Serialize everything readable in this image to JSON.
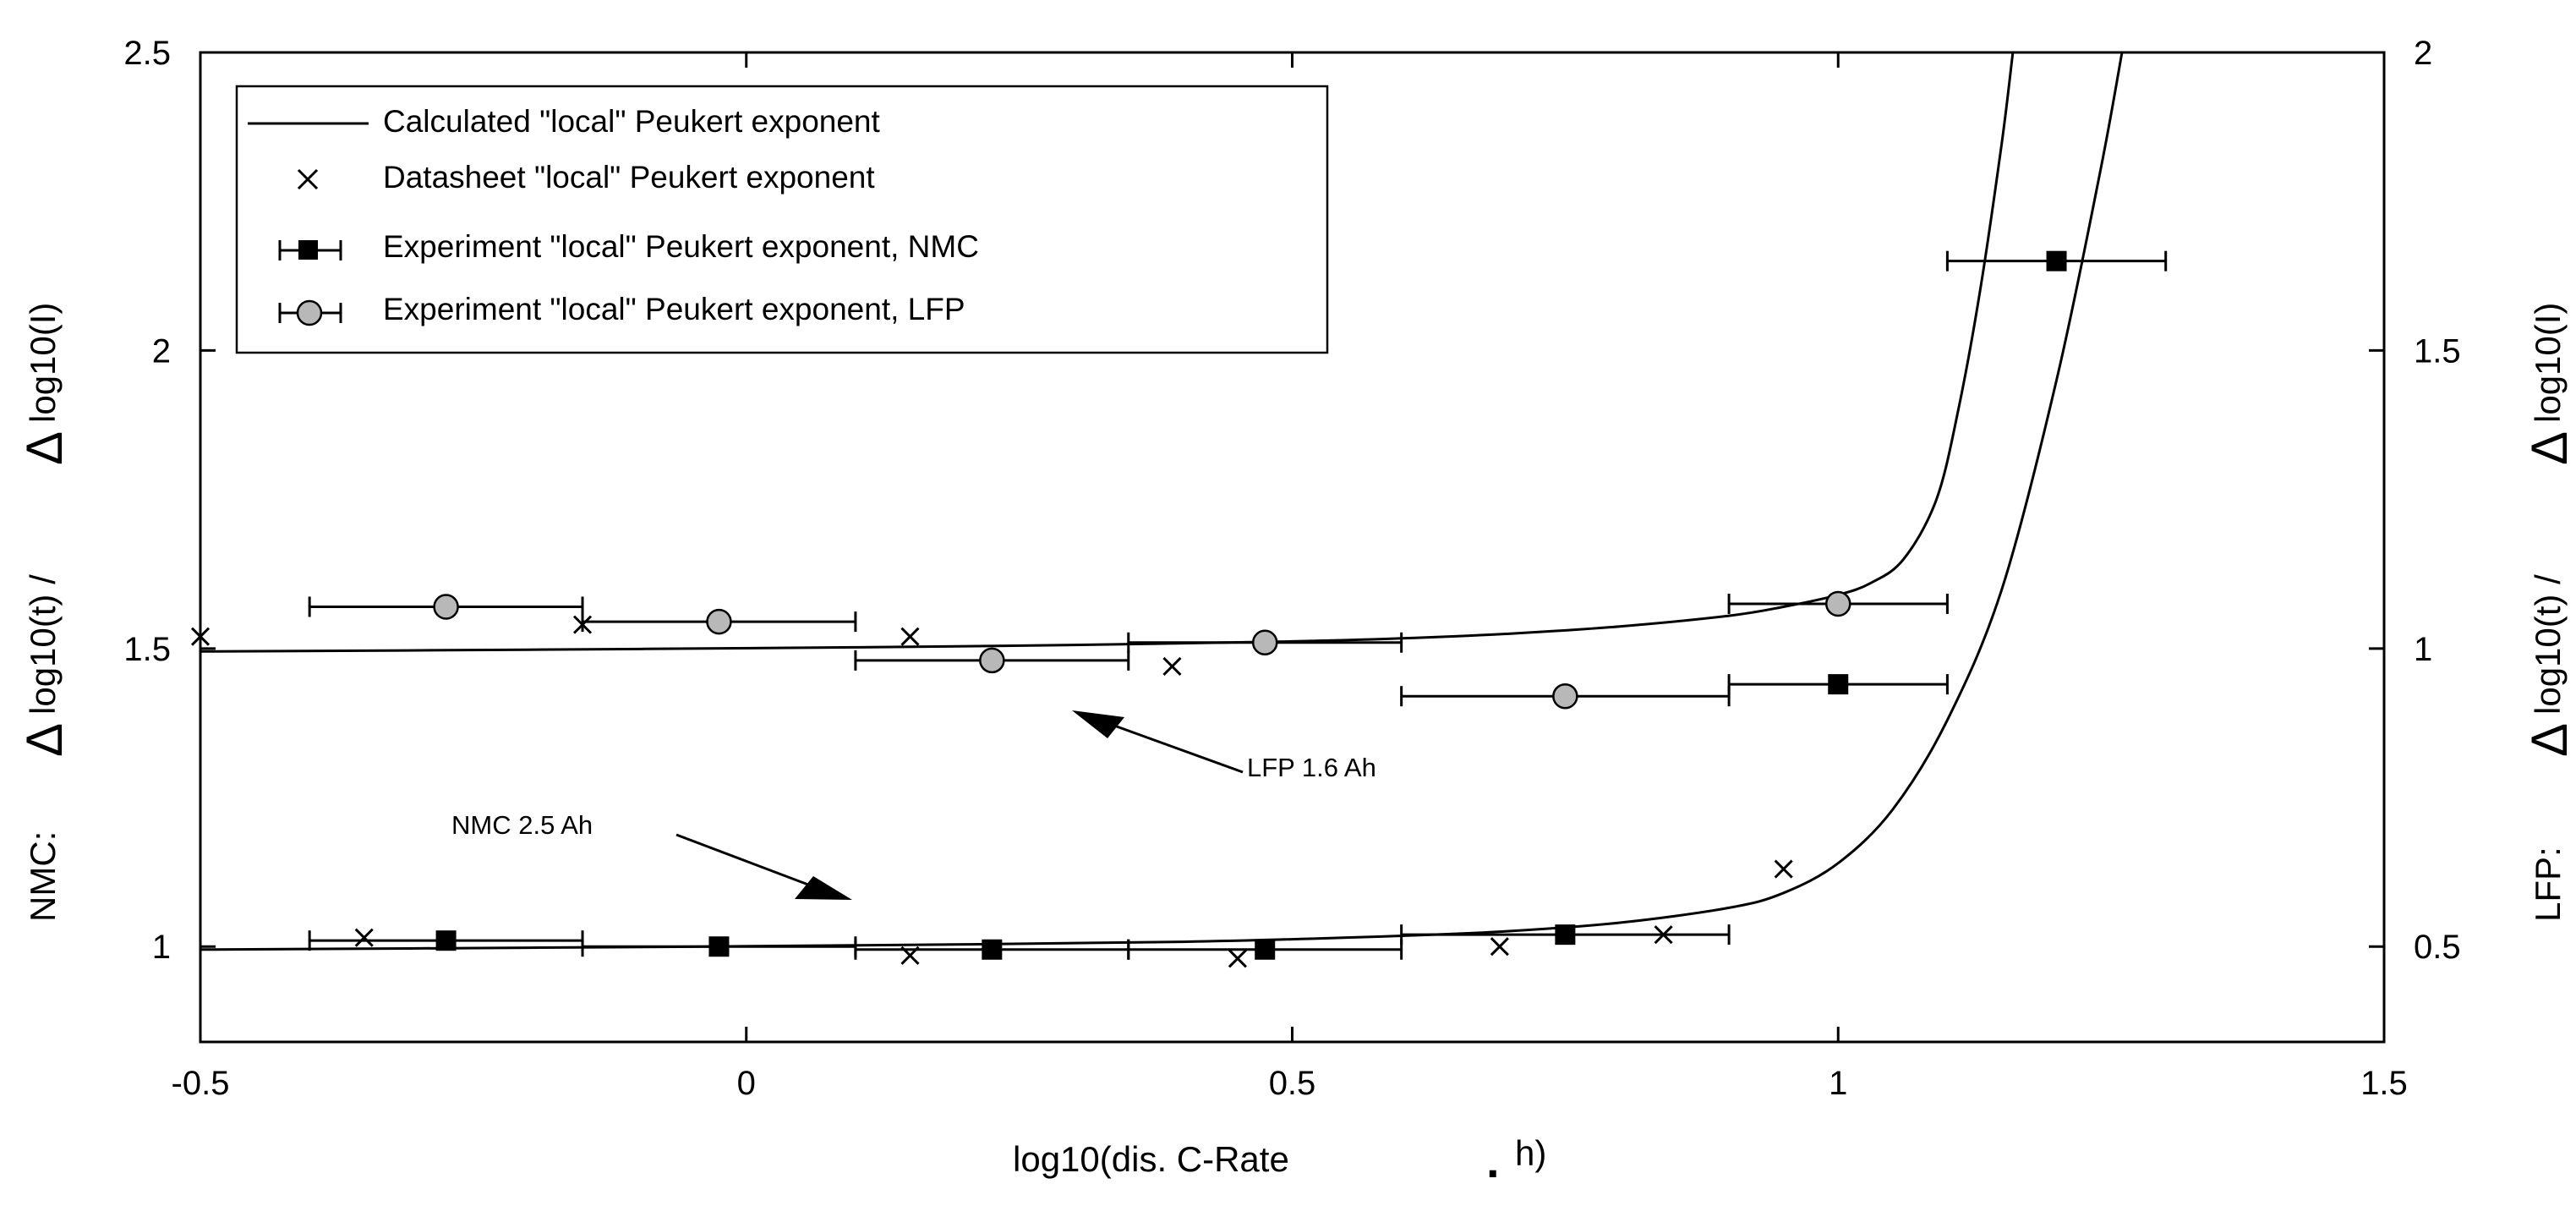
{
  "chart_data": {
    "type": "scatter",
    "title": "",
    "xlabel": "log10(dis. C-Rate . h)",
    "xlabel_parts": [
      "log10(dis. C-Rate",
      ".",
      "h)"
    ],
    "xlim": [
      -0.5,
      1.5
    ],
    "ylim_left": [
      0.84,
      2.5
    ],
    "ylim_right": [
      0.34,
      2.0
    ],
    "x_ticks": [
      "-0.5",
      "0",
      "0.5",
      "1",
      "1.5"
    ],
    "y_ticks_left": [
      "1",
      "1.5",
      "2",
      "2.5"
    ],
    "y_ticks_right": [
      "0.5",
      "1",
      "1.5",
      "2"
    ],
    "ylabel_left": {
      "prefix": "NMC:",
      "delta1": "Δ",
      "num": "log10(t) /",
      "delta2": "Δ",
      "den": "log10(I)"
    },
    "ylabel_right": {
      "prefix": "LFP:",
      "delta1": "Δ",
      "num": "log10(t) /",
      "delta2": "Δ",
      "den": "log10(I)"
    },
    "legend": {
      "position": "top-left",
      "entries": [
        "Calculated \"local\" Peukert exponent",
        "Datasheet \"local\" Peukert exponent",
        "Experiment \"local\" Peukert exponent, NMC",
        "Experiment \"local\" Peukert exponent, LFP"
      ]
    },
    "annotations": [
      "LFP 1.6 Ah",
      "NMC 2.5 Ah"
    ],
    "series": [
      {
        "name": "Calculated \"local\" Peukert exponent (LFP)",
        "axis": "right",
        "kind": "line",
        "points": [
          [
            -0.5,
            0.995
          ],
          [
            -0.2,
            0.998
          ],
          [
            0.1,
            1.002
          ],
          [
            0.3,
            1.006
          ],
          [
            0.5,
            1.012
          ],
          [
            0.6,
            1.017
          ],
          [
            0.7,
            1.025
          ],
          [
            0.8,
            1.037
          ],
          [
            0.9,
            1.055
          ],
          [
            0.95,
            1.07
          ],
          [
            1.0,
            1.09
          ],
          [
            1.03,
            1.11
          ],
          [
            1.06,
            1.15
          ],
          [
            1.09,
            1.25
          ],
          [
            1.11,
            1.4
          ],
          [
            1.13,
            1.6
          ],
          [
            1.15,
            1.85
          ],
          [
            1.16,
            2.0
          ]
        ]
      },
      {
        "name": "Calculated \"local\" Peukert exponent (NMC)",
        "axis": "left",
        "kind": "line",
        "points": [
          [
            -0.5,
            0.995
          ],
          [
            -0.2,
            0.998
          ],
          [
            0.1,
            1.002
          ],
          [
            0.4,
            1.008
          ],
          [
            0.6,
            1.018
          ],
          [
            0.7,
            1.026
          ],
          [
            0.8,
            1.04
          ],
          [
            0.9,
            1.065
          ],
          [
            0.95,
            1.09
          ],
          [
            1.0,
            1.14
          ],
          [
            1.05,
            1.23
          ],
          [
            1.1,
            1.38
          ],
          [
            1.15,
            1.6
          ],
          [
            1.2,
            1.95
          ],
          [
            1.24,
            2.3
          ],
          [
            1.26,
            2.5
          ]
        ]
      },
      {
        "name": "Datasheet \"local\" Peukert exponent",
        "axis": "left",
        "kind": "cross",
        "points": [
          [
            -0.5,
            1.52
          ],
          [
            -0.15,
            1.54
          ],
          [
            0.15,
            1.52
          ],
          [
            0.39,
            1.47
          ],
          [
            -0.35,
            1.015
          ],
          [
            0.15,
            0.985
          ],
          [
            0.45,
            0.98
          ],
          [
            0.69,
            1.0
          ],
          [
            0.84,
            1.02
          ],
          [
            0.95,
            1.13
          ]
        ]
      },
      {
        "name": "Experiment \"local\" Peukert exponent, NMC",
        "axis": "left",
        "kind": "square",
        "points": [
          {
            "x": -0.275,
            "y": 1.01,
            "xmin": -0.4,
            "xmax": -0.15
          },
          {
            "x": -0.025,
            "y": 1.0,
            "xmin": -0.15,
            "xmax": 0.1
          },
          {
            "x": 0.225,
            "y": 0.995,
            "xmin": 0.1,
            "xmax": 0.35
          },
          {
            "x": 0.475,
            "y": 0.995,
            "xmin": 0.35,
            "xmax": 0.6
          },
          {
            "x": 0.75,
            "y": 1.02,
            "xmin": 0.6,
            "xmax": 0.9
          },
          {
            "x": 1.0,
            "y": 1.44,
            "xmin": 0.9,
            "xmax": 1.1
          },
          {
            "x": 1.2,
            "y": 2.15,
            "xmin": 1.1,
            "xmax": 1.3
          }
        ]
      },
      {
        "name": "Experiment \"local\" Peukert exponent, LFP",
        "axis": "right",
        "kind": "circle",
        "points": [
          {
            "x": -0.275,
            "y": 1.07,
            "xmin": -0.4,
            "xmax": -0.15
          },
          {
            "x": -0.025,
            "y": 1.045,
            "xmin": -0.15,
            "xmax": 0.1
          },
          {
            "x": 0.225,
            "y": 0.98,
            "xmin": 0.1,
            "xmax": 0.35
          },
          {
            "x": 0.475,
            "y": 1.01,
            "xmin": 0.35,
            "xmax": 0.6
          },
          {
            "x": 0.75,
            "y": 0.92,
            "xmin": 0.6,
            "xmax": 0.9
          },
          {
            "x": 1.0,
            "y": 1.075,
            "xmin": 0.9,
            "xmax": 1.1
          }
        ]
      }
    ]
  }
}
